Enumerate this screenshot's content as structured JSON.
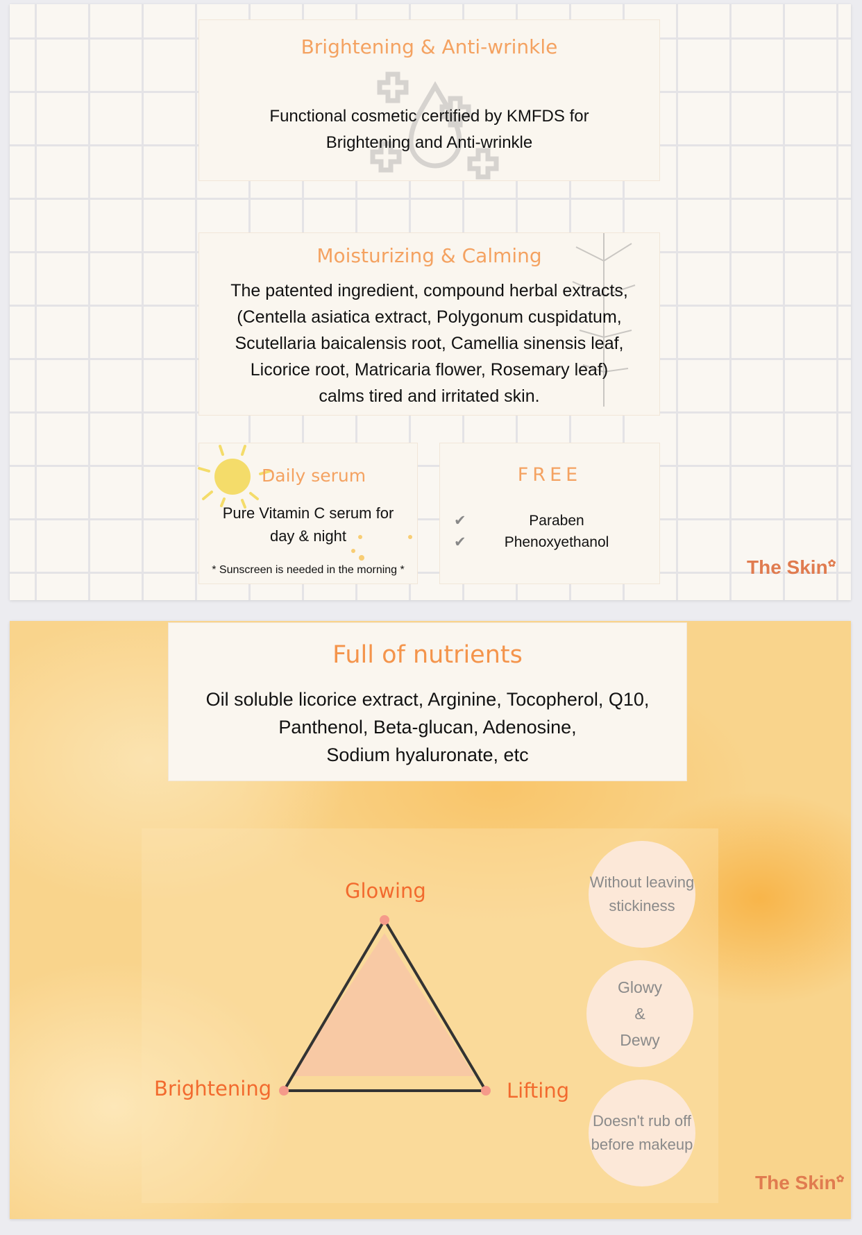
{
  "panel1": {
    "card1": {
      "title": "Brightening & Anti-wrinkle",
      "lines": [
        "Functional cosmetic certified by KMFDS for",
        "Brightening and Anti-wrinkle"
      ]
    },
    "card2": {
      "title": "Moisturizing & Calming",
      "lines": [
        "The patented ingredient, compound herbal extracts,",
        "(Centella asiatica extract, Polygonum cuspidatum,",
        "Scutellaria baicalensis root, Camellia sinensis leaf,",
        "Licorice root, Matricaria flower, Rosemary leaf)",
        "calms tired and irritated skin."
      ]
    },
    "card3": {
      "title": "Daily serum",
      "lines": [
        "Pure Vitamin C serum for",
        "day & night"
      ],
      "note": "* Sunscreen is needed in the morning *"
    },
    "card4": {
      "title": "FREE",
      "items": [
        "Paraben",
        "Phenoxyethanol"
      ]
    },
    "logo": "The Skin"
  },
  "panel2": {
    "card": {
      "title": "Full of nutrients",
      "lines": [
        "Oil soluble licorice extract, Arginine, Tocopherol, Q10,",
        "Panthenol, Beta-glucan, Adenosine,",
        "Sodium hyaluronate, etc"
      ]
    },
    "triangle": {
      "top": "Glowing",
      "left": "Brightening",
      "right": "Lifting"
    },
    "circles": [
      [
        "Without leaving",
        "stickiness"
      ],
      [
        "Glowy",
        "&",
        "Dewy"
      ],
      [
        "Doesn't rub off",
        "before makeup"
      ]
    ],
    "logo": "The Skin"
  },
  "colors": {
    "accent": "#f4a261",
    "label": "#f26a2e",
    "logo": "#e07b4f"
  }
}
